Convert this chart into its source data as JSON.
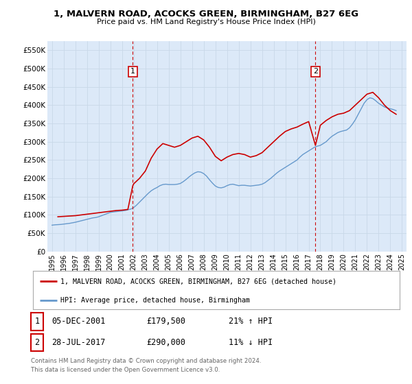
{
  "title": "1, MALVERN ROAD, ACOCKS GREEN, BIRMINGHAM, B27 6EG",
  "subtitle": "Price paid vs. HM Land Registry's House Price Index (HPI)",
  "ylim": [
    0,
    575000
  ],
  "yticks": [
    0,
    50000,
    100000,
    150000,
    200000,
    250000,
    300000,
    350000,
    400000,
    450000,
    500000,
    550000
  ],
  "ytick_labels": [
    "£0",
    "£50K",
    "£100K",
    "£150K",
    "£200K",
    "£250K",
    "£300K",
    "£350K",
    "£400K",
    "£450K",
    "£500K",
    "£550K"
  ],
  "xlim_start": 1994.6,
  "xlim_end": 2025.4,
  "xticks": [
    1995,
    1996,
    1997,
    1998,
    1999,
    2000,
    2001,
    2002,
    2003,
    2004,
    2005,
    2006,
    2007,
    2008,
    2009,
    2010,
    2011,
    2012,
    2013,
    2014,
    2015,
    2016,
    2017,
    2018,
    2019,
    2020,
    2021,
    2022,
    2023,
    2024,
    2025
  ],
  "background_color": "#ffffff",
  "plot_bg_color": "#dce9f8",
  "grid_color": "#c8d8e8",
  "red_color": "#cc0000",
  "blue_color": "#6699cc",
  "marker1_x": 2001.92,
  "marker2_x": 2017.58,
  "legend_line1": "1, MALVERN ROAD, ACOCKS GREEN, BIRMINGHAM, B27 6EG (detached house)",
  "legend_line2": "HPI: Average price, detached house, Birmingham",
  "table_row1": [
    "1",
    "05-DEC-2001",
    "£179,500",
    "21% ↑ HPI"
  ],
  "table_row2": [
    "2",
    "28-JUL-2017",
    "£290,000",
    "11% ↓ HPI"
  ],
  "footer1": "Contains HM Land Registry data © Crown copyright and database right 2024.",
  "footer2": "This data is licensed under the Open Government Licence v3.0.",
  "hpi_data_x": [
    1995.0,
    1995.25,
    1995.5,
    1995.75,
    1996.0,
    1996.25,
    1996.5,
    1996.75,
    1997.0,
    1997.25,
    1997.5,
    1997.75,
    1998.0,
    1998.25,
    1998.5,
    1998.75,
    1999.0,
    1999.25,
    1999.5,
    1999.75,
    2000.0,
    2000.25,
    2000.5,
    2000.75,
    2001.0,
    2001.25,
    2001.5,
    2001.75,
    2002.0,
    2002.25,
    2002.5,
    2002.75,
    2003.0,
    2003.25,
    2003.5,
    2003.75,
    2004.0,
    2004.25,
    2004.5,
    2004.75,
    2005.0,
    2005.25,
    2005.5,
    2005.75,
    2006.0,
    2006.25,
    2006.5,
    2006.75,
    2007.0,
    2007.25,
    2007.5,
    2007.75,
    2008.0,
    2008.25,
    2008.5,
    2008.75,
    2009.0,
    2009.25,
    2009.5,
    2009.75,
    2010.0,
    2010.25,
    2010.5,
    2010.75,
    2011.0,
    2011.25,
    2011.5,
    2011.75,
    2012.0,
    2012.25,
    2012.5,
    2012.75,
    2013.0,
    2013.25,
    2013.5,
    2013.75,
    2014.0,
    2014.25,
    2014.5,
    2014.75,
    2015.0,
    2015.25,
    2015.5,
    2015.75,
    2016.0,
    2016.25,
    2016.5,
    2016.75,
    2017.0,
    2017.25,
    2017.5,
    2017.75,
    2018.0,
    2018.25,
    2018.5,
    2018.75,
    2019.0,
    2019.25,
    2019.5,
    2019.75,
    2020.0,
    2020.25,
    2020.5,
    2020.75,
    2021.0,
    2021.25,
    2021.5,
    2021.75,
    2022.0,
    2022.25,
    2022.5,
    2022.75,
    2023.0,
    2023.25,
    2023.5,
    2023.75,
    2024.0,
    2024.25,
    2024.5
  ],
  "hpi_data_y": [
    72000,
    73000,
    73500,
    74000,
    75000,
    76000,
    77000,
    78500,
    80000,
    82000,
    84000,
    86000,
    88000,
    90000,
    92000,
    93000,
    95000,
    98000,
    101000,
    104000,
    107000,
    108000,
    109000,
    110000,
    111000,
    112000,
    114000,
    116000,
    120000,
    127000,
    135000,
    143000,
    151000,
    159000,
    166000,
    171000,
    175000,
    180000,
    183000,
    184000,
    183000,
    183000,
    183000,
    184000,
    186000,
    191000,
    197000,
    204000,
    210000,
    215000,
    218000,
    217000,
    213000,
    206000,
    196000,
    187000,
    179000,
    175000,
    174000,
    176000,
    180000,
    183000,
    184000,
    182000,
    180000,
    181000,
    181000,
    180000,
    179000,
    180000,
    181000,
    182000,
    184000,
    188000,
    194000,
    200000,
    207000,
    214000,
    220000,
    225000,
    230000,
    235000,
    240000,
    245000,
    250000,
    258000,
    265000,
    270000,
    275000,
    280000,
    285000,
    288000,
    290000,
    295000,
    300000,
    308000,
    315000,
    320000,
    325000,
    328000,
    330000,
    332000,
    338000,
    348000,
    360000,
    375000,
    390000,
    405000,
    415000,
    420000,
    418000,
    412000,
    405000,
    400000,
    395000,
    392000,
    390000,
    388000,
    385000
  ],
  "price_data_x": [
    1995.5,
    1996.0,
    1996.5,
    1997.0,
    1997.5,
    1998.0,
    1998.5,
    1999.0,
    1999.5,
    2000.0,
    2000.5,
    2001.0,
    2001.5,
    2001.92,
    2002.0,
    2002.5,
    2003.0,
    2003.5,
    2004.0,
    2004.5,
    2005.0,
    2005.5,
    2006.0,
    2006.5,
    2007.0,
    2007.5,
    2008.0,
    2008.5,
    2009.0,
    2009.5,
    2010.0,
    2010.5,
    2011.0,
    2011.5,
    2012.0,
    2012.5,
    2013.0,
    2013.5,
    2014.0,
    2014.5,
    2015.0,
    2015.5,
    2016.0,
    2016.5,
    2017.0,
    2017.58,
    2018.0,
    2018.5,
    2019.0,
    2019.5,
    2020.0,
    2020.5,
    2021.0,
    2021.5,
    2022.0,
    2022.5,
    2023.0,
    2023.5,
    2024.0,
    2024.5
  ],
  "price_data_y": [
    95000,
    96000,
    97000,
    98000,
    100000,
    102000,
    104000,
    106000,
    108000,
    110000,
    112000,
    113000,
    115000,
    179500,
    185000,
    200000,
    220000,
    255000,
    280000,
    295000,
    290000,
    285000,
    290000,
    300000,
    310000,
    315000,
    305000,
    285000,
    260000,
    248000,
    258000,
    265000,
    268000,
    265000,
    258000,
    262000,
    270000,
    285000,
    300000,
    315000,
    328000,
    335000,
    340000,
    348000,
    355000,
    290000,
    345000,
    358000,
    368000,
    375000,
    378000,
    385000,
    400000,
    415000,
    430000,
    435000,
    420000,
    400000,
    385000,
    375000
  ]
}
